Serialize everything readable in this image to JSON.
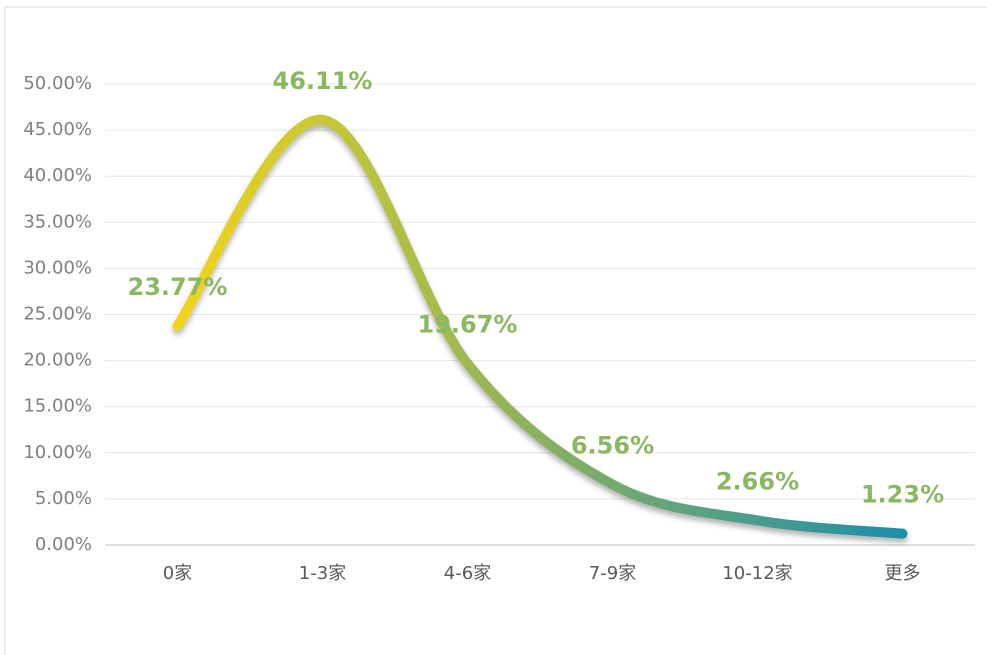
{
  "chart_data": {
    "type": "line",
    "categories": [
      "0家",
      "1-3家",
      "4-6家",
      "7-9家",
      "10-12家",
      "更多"
    ],
    "series": [
      {
        "values": [
          23.77,
          46.11,
          19.67,
          6.56,
          2.66,
          1.23
        ],
        "value_labels": [
          "23.77%",
          "46.11%",
          "19.67%",
          "6.56%",
          "2.66%",
          "1.23%"
        ],
        "color": [
          "#f2d419",
          "#1f8ea8"
        ]
      }
    ],
    "ylim": [
      0,
      50
    ],
    "yticks": [
      {
        "value": 0,
        "label": "0.00%"
      },
      {
        "value": 5,
        "label": "5.00%"
      },
      {
        "value": 10,
        "label": "10.00%"
      },
      {
        "value": 15,
        "label": "15.00%"
      },
      {
        "value": 20,
        "label": "20.00%"
      },
      {
        "value": 25,
        "label": "25.00%"
      },
      {
        "value": 30,
        "label": "30.00%"
      },
      {
        "value": 35,
        "label": "35.00%"
      },
      {
        "value": 40,
        "label": "40.00%"
      },
      {
        "value": 45,
        "label": "45.00%"
      },
      {
        "value": 50,
        "label": "50.00%"
      }
    ],
    "grid": true,
    "smooth": true
  }
}
